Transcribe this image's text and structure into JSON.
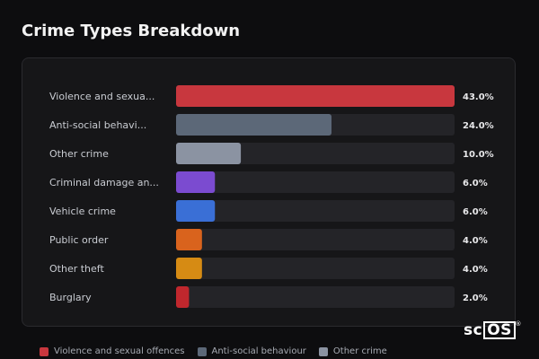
{
  "title": "Crime Types Breakdown",
  "chart_data": {
    "type": "bar",
    "orientation": "horizontal",
    "title": "Crime Types Breakdown",
    "xlim": [
      0,
      43
    ],
    "grid": false,
    "legend_placement": "bottom-left",
    "categories": [
      "Violence and sexua...",
      "Anti-social behavi...",
      "Other crime",
      "Criminal damage an...",
      "Vehicle crime",
      "Public order",
      "Other theft",
      "Burglary"
    ],
    "values": [
      43.0,
      24.0,
      10.0,
      6.0,
      6.0,
      4.0,
      4.0,
      2.0
    ],
    "value_labels": [
      "43.0%",
      "24.0%",
      "10.0%",
      "6.0%",
      "6.0%",
      "4.0%",
      "4.0%",
      "2.0%"
    ],
    "colors": [
      "#c8373e",
      "#5c6878",
      "#8b93a2",
      "#7b4bd0",
      "#3a6fd6",
      "#d9631d",
      "#d68b14",
      "#c0272d"
    ],
    "track_color": "#242428"
  },
  "legend": [
    {
      "label": "Violence and sexual offences",
      "color": "#c8373e"
    },
    {
      "label": "Anti-social behaviour",
      "color": "#5c6878"
    },
    {
      "label": "Other crime",
      "color": "#8b93a2"
    }
  ],
  "logo": {
    "text_plain": "sc",
    "text_boxed": "OS",
    "mark": "®"
  }
}
